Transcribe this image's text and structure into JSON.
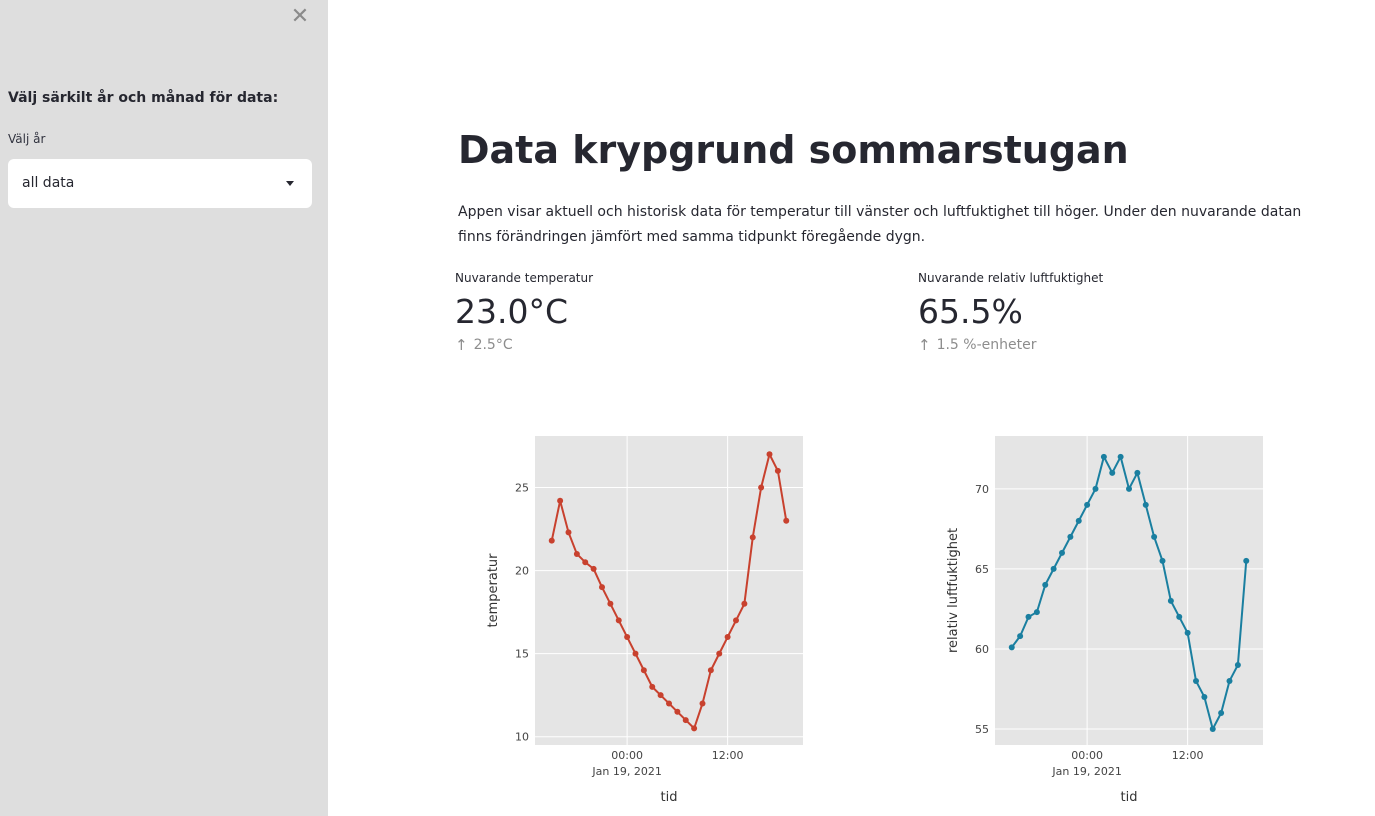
{
  "sidebar": {
    "close_icon": "close-icon",
    "heading": "Välj särkilt år och månad för data:",
    "year_label": "Välj år",
    "year_value": "all data"
  },
  "main": {
    "title": "Data krypgrund sommarstugan",
    "description": "Appen visar aktuell och historisk data för temperatur till vänster och luftfuktighet till höger. Under den nuvarande datan finns förändringen jämfört med samma tidpunkt föregående dygn."
  },
  "metrics": {
    "temperature": {
      "label": "Nuvarande temperatur",
      "value": "23.0°C",
      "delta": "2.5°C"
    },
    "humidity": {
      "label": "Nuvarande relativ luftfuktighet",
      "value": "65.5%",
      "delta": "1.5 %-enheter"
    }
  },
  "chart_data": [
    {
      "type": "line",
      "color": "#c8412e",
      "xlabel": "tid",
      "ylabel": "temperatur",
      "x_unit": "hours relative to Jan 19, 2021 00:00",
      "x": [
        -9,
        -8,
        -7,
        -6,
        -5,
        -4,
        -3,
        -2,
        -1,
        0,
        1,
        2,
        3,
        4,
        5,
        6,
        7,
        8,
        9,
        10,
        11,
        12,
        13,
        14,
        15,
        16,
        17,
        18,
        19
      ],
      "y": [
        21.8,
        24.2,
        22.3,
        21.0,
        20.5,
        20.1,
        19.0,
        18.0,
        17.0,
        16.0,
        15.0,
        14.0,
        13.0,
        12.5,
        12.0,
        11.5,
        11.0,
        10.5,
        12.0,
        14.0,
        15.0,
        16.0,
        17.0,
        18.0,
        22.0,
        25.0,
        27.0,
        26.0,
        23.0
      ],
      "xlim": [
        -11,
        21
      ],
      "ylim": [
        9.5,
        28.1
      ],
      "x_ticks": [
        {
          "x": 0,
          "label": "00:00",
          "sublabel": "Jan 19, 2021"
        },
        {
          "x": 12,
          "label": "12:00",
          "sublabel": ""
        }
      ],
      "y_ticks": [
        10,
        15,
        20,
        25
      ],
      "grid": true
    },
    {
      "type": "line",
      "color": "#1a7fa0",
      "xlabel": "tid",
      "ylabel": "relativ luftfuktighet",
      "x_unit": "hours relative to Jan 19, 2021 00:00",
      "x": [
        -9,
        -8,
        -7,
        -6,
        -5,
        -4,
        -3,
        -2,
        -1,
        0,
        1,
        2,
        3,
        4,
        5,
        6,
        7,
        8,
        9,
        10,
        11,
        12,
        13,
        14,
        15,
        16,
        17,
        18,
        19
      ],
      "y": [
        60.1,
        60.8,
        62.0,
        62.3,
        64.0,
        65.0,
        66.0,
        67.0,
        68.0,
        69.0,
        70.0,
        72.0,
        71.0,
        72.0,
        70.0,
        71.0,
        69.0,
        67.0,
        65.5,
        63.0,
        62.0,
        61.0,
        58.0,
        57.0,
        55.0,
        56.0,
        58.0,
        59.0,
        65.5
      ],
      "xlim": [
        -11,
        21
      ],
      "ylim": [
        54.0,
        73.3
      ],
      "x_ticks": [
        {
          "x": 0,
          "label": "00:00",
          "sublabel": "Jan 19, 2021"
        },
        {
          "x": 12,
          "label": "12:00",
          "sublabel": ""
        }
      ],
      "y_ticks": [
        55,
        60,
        65,
        70
      ],
      "grid": true
    }
  ]
}
